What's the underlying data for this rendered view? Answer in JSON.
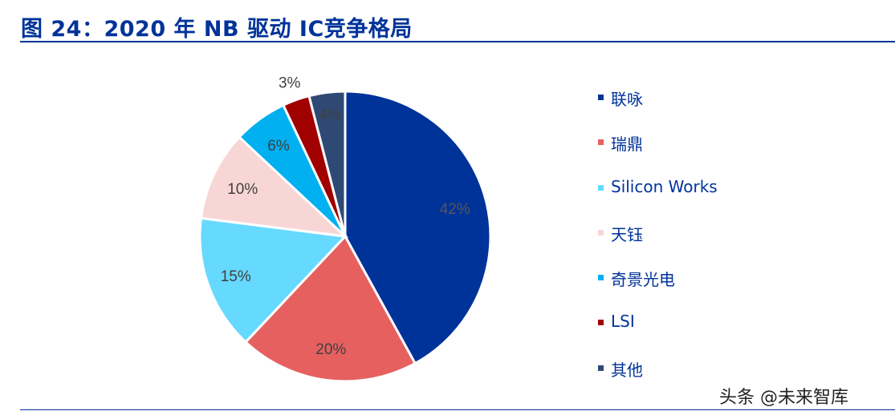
{
  "chart_data": {
    "type": "pie",
    "title": "图 24：2020 年 NB 驱动 IC竞争格局",
    "categories": [
      "联咏",
      "瑞鼎",
      "Silicon Works",
      "天钰",
      "奇景光电",
      "LSI",
      "其他"
    ],
    "values": [
      42,
      20,
      15,
      10,
      6,
      3,
      4
    ],
    "labels": [
      "42%",
      "20%",
      "15%",
      "10%",
      "6%",
      "3%",
      "4%"
    ],
    "colors": [
      "#003399",
      "#E66060",
      "#66D9FF",
      "#F9D6D6",
      "#00B0F0",
      "#A00000",
      "#2E4A74"
    ],
    "legend_position": "right"
  },
  "watermark": "头条 @未来智库"
}
